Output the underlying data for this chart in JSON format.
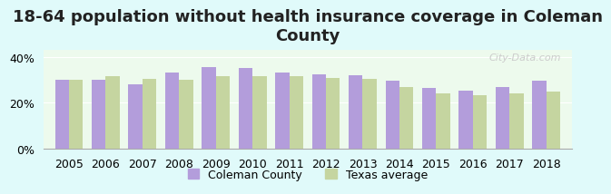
{
  "title": "18-64 population without health insurance coverage in Coleman\nCounty",
  "years": [
    2005,
    2006,
    2007,
    2008,
    2009,
    2010,
    2011,
    2012,
    2013,
    2014,
    2015,
    2016,
    2017,
    2018
  ],
  "coleman": [
    30.0,
    30.0,
    28.0,
    33.0,
    35.5,
    35.0,
    33.0,
    32.5,
    32.0,
    29.5,
    26.5,
    25.5,
    27.0,
    29.5
  ],
  "texas": [
    30.0,
    31.5,
    30.5,
    30.0,
    31.5,
    31.5,
    31.5,
    31.0,
    30.5,
    27.0,
    24.0,
    23.5,
    24.0,
    25.0
  ],
  "coleman_color": "#b39ddb",
  "texas_color": "#c5d5a0",
  "background_color": "#e0fafa",
  "plot_bg": "#edfaed",
  "ylim": [
    0,
    43
  ],
  "yticks": [
    0,
    20,
    40
  ],
  "ytick_labels": [
    "0%",
    "20%",
    "40%"
  ],
  "legend_coleman": "Coleman County",
  "legend_texas": "Texas average",
  "bar_width": 0.38,
  "title_fontsize": 13,
  "tick_fontsize": 9,
  "legend_fontsize": 9
}
